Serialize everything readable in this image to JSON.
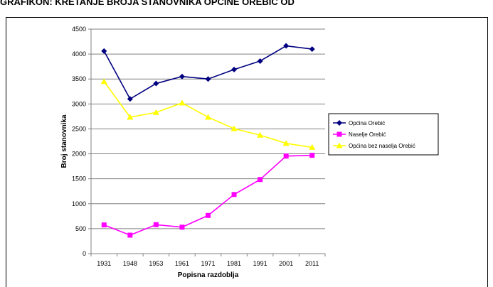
{
  "page": {
    "title": "GRAFIKON: KRETANJE BROJA STANOVNIKA OPĆINE OREBIĆ OD"
  },
  "chart_data": {
    "type": "line",
    "title": "",
    "xlabel": "Popisna razdoblja",
    "ylabel": "Broj stanovnika",
    "categories": [
      "1931",
      "1948",
      "1953",
      "1961",
      "1971",
      "1981",
      "1991",
      "2001",
      "2011"
    ],
    "ylim": [
      0,
      4500
    ],
    "yticks": [
      "0",
      "500",
      "1000",
      "1500",
      "2000",
      "2500",
      "3000",
      "3500",
      "4000",
      "4500"
    ],
    "grid": "horizontal",
    "legend_position": "right",
    "series": [
      {
        "name": "Općina Orebić",
        "color": "#000080",
        "marker": "diamond",
        "values": [
          4060,
          3100,
          3410,
          3550,
          3500,
          3690,
          3860,
          4165,
          4100
        ]
      },
      {
        "name": "Naselje Orebić",
        "color": "#ff00ff",
        "marker": "square",
        "values": [
          575,
          370,
          580,
          530,
          765,
          1185,
          1485,
          1955,
          1970
        ]
      },
      {
        "name": "Općina bez naselja Orebić",
        "color": "#ffff00",
        "marker": "triangle",
        "values": [
          3450,
          2735,
          2830,
          3020,
          2735,
          2505,
          2375,
          2210,
          2130
        ]
      }
    ]
  }
}
